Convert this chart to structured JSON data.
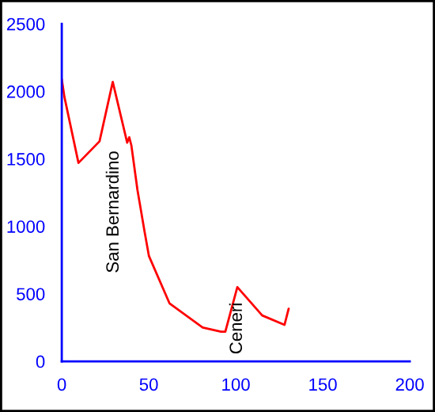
{
  "chart_data": {
    "type": "line",
    "x": [
      0,
      1.5,
      9.6,
      21.7,
      29.3,
      37.6,
      38.8,
      40,
      43.5,
      47.6,
      50.1,
      61.9,
      81,
      91.5,
      94,
      100.9,
      115.2,
      128,
      130.4
    ],
    "series": [
      {
        "color": "#ff0000",
        "values": [
          2090,
          1960,
          1470,
          1630,
          2070,
          1620,
          1660,
          1600,
          1270,
          960,
          780,
          430,
          250,
          220,
          220,
          550,
          340,
          270,
          390
        ]
      }
    ],
    "xlim": [
      0,
      200
    ],
    "xticks": [
      0,
      50,
      100,
      150,
      200
    ],
    "ylim": [
      0,
      2500
    ],
    "yticks": [
      0,
      500,
      1000,
      1500,
      2000,
      2500
    ],
    "grid": false,
    "legend": false,
    "marker": "none",
    "line_style": "solid",
    "annotations": [
      "San Bernardino",
      {
        "text": "Ceneri",
        "x": 100.9,
        "y": 550
      }
    ]
  }
}
